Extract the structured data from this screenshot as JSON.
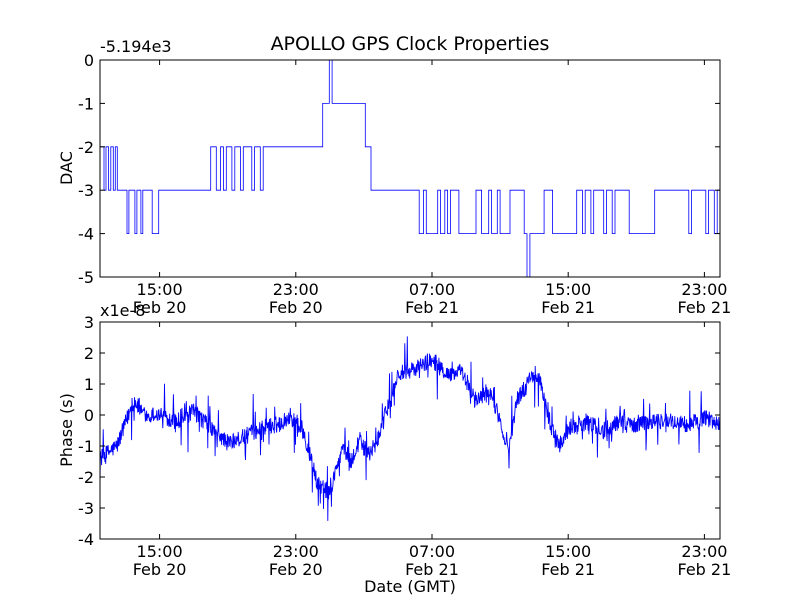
{
  "chart_data": [
    {
      "type": "line",
      "title": "APOLLO GPS Clock Properties",
      "ylabel": "DAC",
      "offset_label": "-5.194e3",
      "xlim": [
        "Feb 20 11:30",
        "Feb 21 23:55"
      ],
      "ylim": [
        -5,
        0
      ],
      "yticks": [
        "-5",
        "-4",
        "-3",
        "-2",
        "-1",
        "0"
      ],
      "xticks": [
        {
          "time": "15:00",
          "date": "Feb 20"
        },
        {
          "time": "23:00",
          "date": "Feb 20"
        },
        {
          "time": "07:00",
          "date": "Feb 21"
        },
        {
          "time": "15:00",
          "date": "Feb 21"
        },
        {
          "time": "23:00",
          "date": "Feb 21"
        }
      ],
      "color": "#0000ff",
      "series": [
        {
          "x": [
            "Feb 20 11:30",
            "Feb 20 11:44",
            "Feb 20 11:51",
            "Feb 20 12:00",
            "Feb 20 12:08",
            "Feb 20 12:17",
            "Feb 20 12:24",
            "Feb 20 12:31",
            "Feb 20 12:38",
            "Feb 20 13:05",
            "Feb 20 13:12",
            "Feb 20 13:33",
            "Feb 20 13:40",
            "Feb 20 13:54",
            "Feb 20 14:01",
            "Feb 20 14:20",
            "Feb 20 14:34",
            "Feb 20 14:57",
            "Feb 20 15:07",
            "Feb 20 17:45",
            "Feb 20 18:00",
            "Feb 20 18:20",
            "Feb 20 18:35",
            "Feb 20 18:45",
            "Feb 20 18:55",
            "Feb 20 19:15",
            "Feb 20 19:25",
            "Feb 20 19:45",
            "Feb 20 19:55",
            "Feb 20 20:25",
            "Feb 20 20:35",
            "Feb 20 20:55",
            "Feb 20 21:05",
            "Feb 20 21:15",
            "Feb 20 21:25",
            "Feb 20 21:45",
            "Feb 20 21:55",
            "Feb 21 00:15",
            "Feb 21 00:35",
            "Feb 21 00:50",
            "Feb 21 00:58",
            "Feb 21 01:08",
            "Feb 21 01:16",
            "Feb 21 02:05",
            "Feb 21 03:05",
            "Feb 21 03:15",
            "Feb 21 03:25",
            "Feb 21 06:05",
            "Feb 21 06:15",
            "Feb 21 06:30",
            "Feb 21 06:40",
            "Feb 21 07:20",
            "Feb 21 07:30",
            "Feb 21 07:45",
            "Feb 21 07:55",
            "Feb 21 08:05",
            "Feb 21 08:15",
            "Feb 21 08:35",
            "Feb 21 09:25",
            "Feb 21 09:35",
            "Feb 21 09:55",
            "Feb 21 10:20",
            "Feb 21 10:30",
            "Feb 21 10:50",
            "Feb 21 11:00",
            "Feb 21 11:35",
            "Feb 21 12:25",
            "Feb 21 12:35",
            "Feb 21 12:45",
            "Feb 21 12:55",
            "Feb 21 13:05",
            "Feb 21 13:35",
            "Feb 21 14:05",
            "Feb 21 15:20",
            "Feb 21 15:30",
            "Feb 21 15:50",
            "Feb 21 16:00",
            "Feb 21 16:20",
            "Feb 21 16:30",
            "Feb 21 17:05",
            "Feb 21 17:15",
            "Feb 21 17:35",
            "Feb 21 17:45",
            "Feb 21 18:35",
            "Feb 21 20:05",
            "Feb 21 21:05",
            "Feb 21 21:15",
            "Feb 21 22:05",
            "Feb 21 22:15",
            "Feb 21 23:05",
            "Feb 21 23:15",
            "Feb 21 23:35",
            "Feb 21 23:45",
            "Feb 21 23:55"
          ],
          "y": [
            -2,
            -3,
            -2,
            -3,
            -2,
            -3,
            -2,
            -3,
            -3,
            -4,
            -3,
            -4,
            -3,
            -4,
            -3,
            -3,
            -4,
            -3,
            -3,
            -3,
            -2,
            -3,
            -2,
            -3,
            -2,
            -3,
            -2,
            -3,
            -2,
            -3,
            -2,
            -3,
            -2,
            -2,
            -2,
            -2,
            -2,
            -2,
            -1,
            -1,
            0,
            -1,
            -1,
            -1,
            -2,
            -2,
            -3,
            -3,
            -4,
            -3,
            -4,
            -3,
            -4,
            -3,
            -4,
            -3,
            -3,
            -4,
            -4,
            -3,
            -4,
            -3,
            -4,
            -3,
            -4,
            -3,
            -4,
            -5,
            -4,
            -4,
            -4,
            -3,
            -4,
            -4,
            -3,
            -4,
            -3,
            -4,
            -3,
            -4,
            -3,
            -4,
            -3,
            -4,
            -3,
            -3,
            -3,
            -4,
            -3,
            -4,
            -3,
            -4,
            -3,
            -4
          ]
        }
      ]
    },
    {
      "type": "line",
      "ylabel": "Phase (s)",
      "xlabel": "Date (GMT)",
      "offset_label": "x1e-8",
      "xlim": [
        "Feb 20 11:30",
        "Feb 21 23:55"
      ],
      "ylim": [
        -4,
        3
      ],
      "yticks": [
        "-4",
        "-3",
        "-2",
        "-1",
        "0",
        "1",
        "2",
        "3"
      ],
      "xticks": [
        {
          "time": "15:00",
          "date": "Feb 20"
        },
        {
          "time": "23:00",
          "date": "Feb 20"
        },
        {
          "time": "07:00",
          "date": "Feb 21"
        },
        {
          "time": "15:00",
          "date": "Feb 21"
        },
        {
          "time": "23:00",
          "date": "Feb 21"
        }
      ],
      "color": "#0000ff",
      "series": [
        {
          "x": [
            "Feb 20 11:30",
            "Feb 20 12:30",
            "Feb 20 13:30",
            "Feb 20 14:00",
            "Feb 20 15:00",
            "Feb 20 16:00",
            "Feb 20 17:00",
            "Feb 20 18:00",
            "Feb 20 19:00",
            "Feb 20 20:00",
            "Feb 20 21:00",
            "Feb 20 22:00",
            "Feb 20 22:45",
            "Feb 20 23:30",
            "Feb 21 00:15",
            "Feb 21 01:00",
            "Feb 21 01:45",
            "Feb 21 02:15",
            "Feb 21 02:45",
            "Feb 21 03:15",
            "Feb 21 03:45",
            "Feb 21 05:00",
            "Feb 21 06:00",
            "Feb 21 07:00",
            "Feb 21 08:00",
            "Feb 21 08:45",
            "Feb 21 09:30",
            "Feb 21 10:30",
            "Feb 21 11:30",
            "Feb 21 12:00",
            "Feb 21 12:45",
            "Feb 21 13:15",
            "Feb 21 14:00",
            "Feb 21 14:30",
            "Feb 21 15:00",
            "Feb 21 16:00",
            "Feb 21 17:00",
            "Feb 21 18:00",
            "Feb 21 19:00",
            "Feb 21 20:00",
            "Feb 21 21:00",
            "Feb 21 22:00",
            "Feb 21 23:00",
            "Feb 21 23:55"
          ],
          "y": [
            -1.4,
            -1.0,
            0.5,
            0.0,
            0.0,
            -0.2,
            0.1,
            -0.4,
            -0.9,
            -0.7,
            -0.4,
            -0.3,
            0.0,
            -0.6,
            -2.2,
            -2.5,
            -1.0,
            -1.5,
            -0.8,
            -1.3,
            -0.9,
            1.3,
            1.5,
            1.8,
            1.3,
            1.4,
            0.5,
            0.7,
            -1.1,
            0.5,
            1.1,
            1.3,
            -0.4,
            -1.0,
            -0.4,
            -0.2,
            -0.5,
            -0.2,
            -0.3,
            -0.2,
            -0.2,
            -0.3,
            -0.1,
            -0.3
          ]
        }
      ]
    }
  ]
}
